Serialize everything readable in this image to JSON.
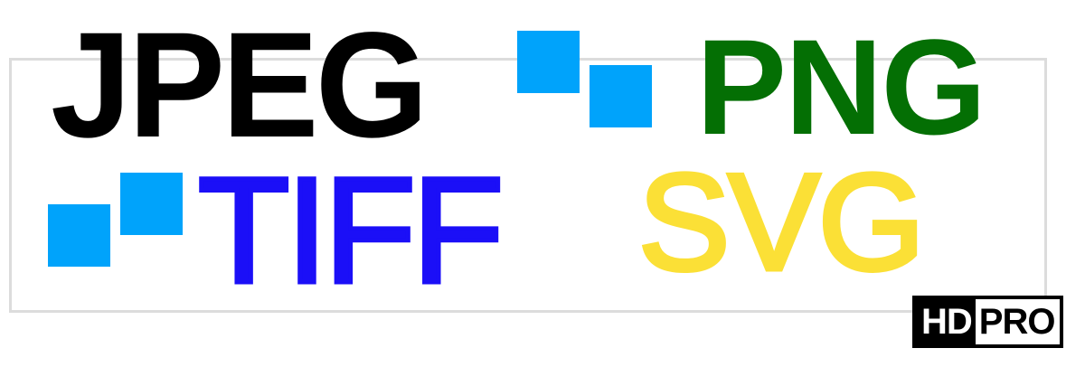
{
  "words": {
    "jpeg": {
      "label": "JPEG",
      "color": "#000000"
    },
    "png": {
      "label": "PNG",
      "color": "#046f04"
    },
    "tiff": {
      "label": "TIFF",
      "color": "#1b0ff7"
    },
    "svg": {
      "label": "SVG",
      "color": "#fbe036"
    }
  },
  "squares": {
    "color": "#00a3fb"
  },
  "frame": {
    "color": "#dcdcdc"
  },
  "badge": {
    "hd": "HD",
    "pro": "PRO"
  }
}
